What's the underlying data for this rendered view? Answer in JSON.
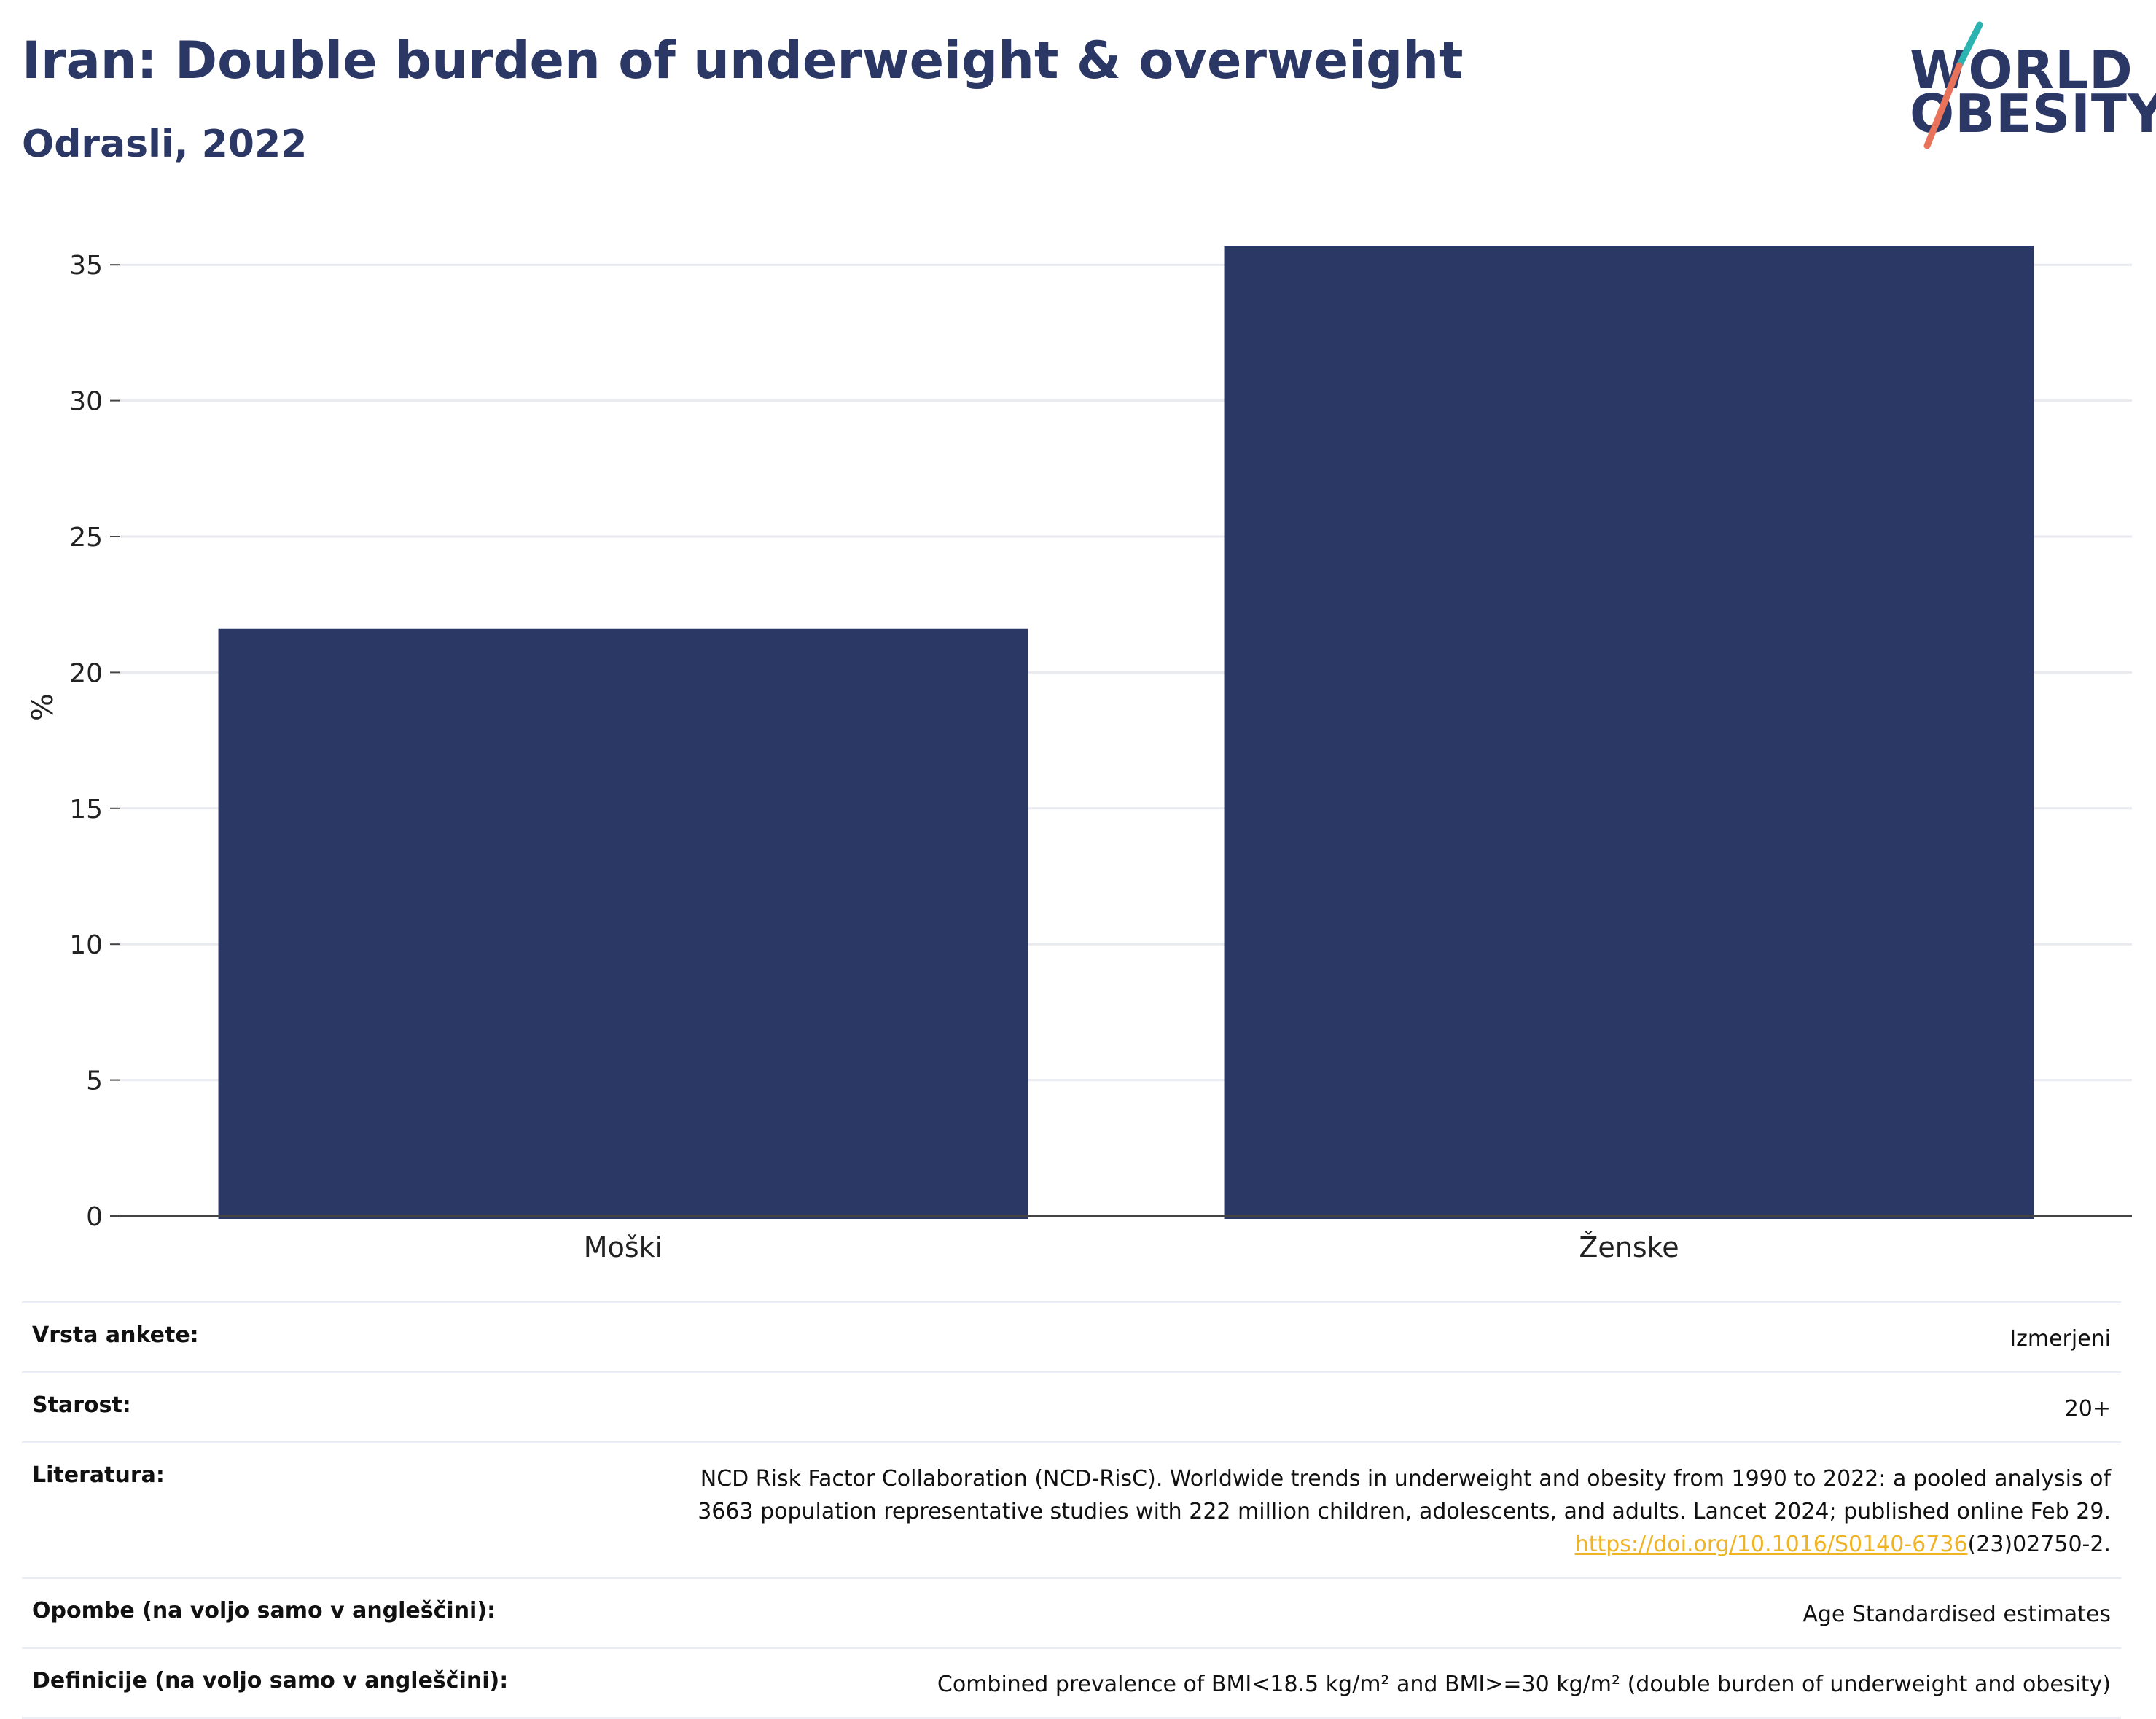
{
  "header": {
    "title": "Iran: Double burden of underweight & overweight",
    "subtitle": "Odrasli, 2022"
  },
  "logo": {
    "line1": "WORLD",
    "line2": "OBESITY",
    "colors": {
      "text": "#2b3765",
      "slash_top": "#2bb3b1",
      "slash_bottom": "#e8735a"
    }
  },
  "chart_data": {
    "type": "bar",
    "categories": [
      "Moški",
      "Ženske"
    ],
    "values": [
      21.6,
      35.7
    ],
    "ylabel": "%",
    "xlabel": "",
    "ylim": [
      0,
      37.5
    ],
    "yticks": [
      0,
      5,
      10,
      15,
      20,
      25,
      30,
      35
    ],
    "grid": true,
    "bar_color": "#2b3765"
  },
  "meta": {
    "survey_type": {
      "label": "Vrsta ankete:",
      "value": "Izmerjeni"
    },
    "age": {
      "label": "Starost:",
      "value": "20+"
    },
    "references": {
      "label": "Literatura:",
      "line1": "NCD Risk Factor Collaboration (NCD-RisC). Worldwide trends in underweight and obesity from 1990 to 2022: a pooled analysis of",
      "line2": "3663 population representative studies with 222 million children, adolescents, and adults. Lancet 2024; published online Feb 29.",
      "link": "https://doi.org/10.1016/S0140-6736",
      "link_suffix": "(23)02750-2."
    },
    "notes": {
      "label": "Opombe (na voljo samo v angleščini):",
      "value": "Age Standardised estimates"
    },
    "definitions": {
      "label": "Definicije (na voljo samo v angleščini):",
      "value": "Combined prevalence of BMI<18.5 kg/m² and BMI>=30 kg/m² (double burden of underweight and obesity)"
    }
  }
}
